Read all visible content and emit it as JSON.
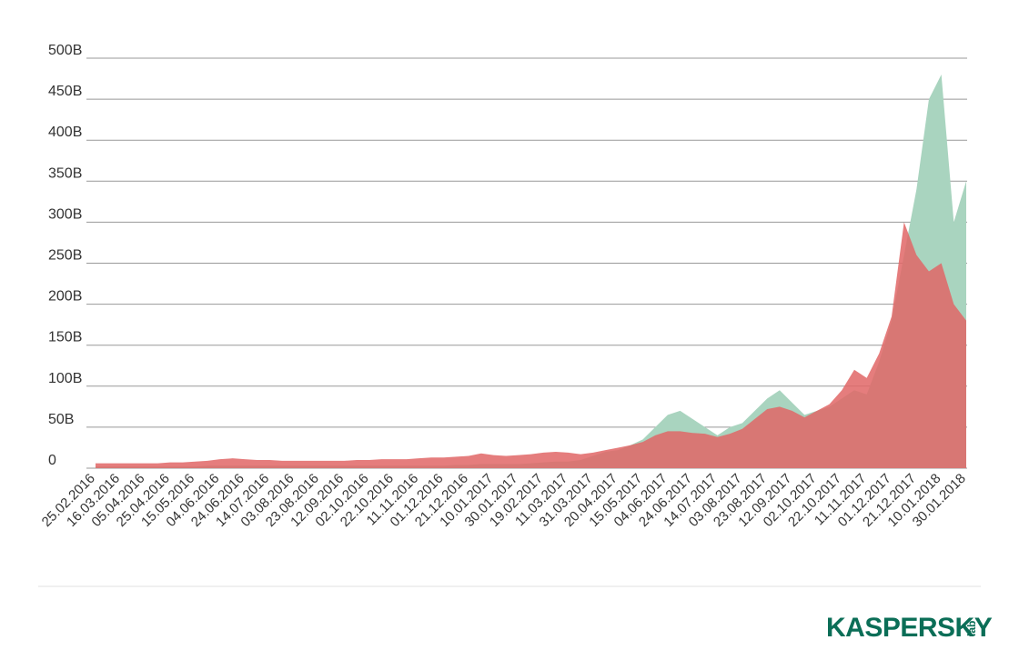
{
  "chart_data": {
    "type": "area",
    "categories": [
      "25.02.2016",
      null,
      "16.03.2016",
      null,
      "05.04.2016",
      null,
      "25.04.2016",
      null,
      "15.05.2016",
      null,
      "04.06.2016",
      null,
      "24.06.2016",
      null,
      "14.07.2016",
      null,
      "03.08.2016",
      null,
      "23.08.2016",
      null,
      "12.09.2016",
      null,
      "02.10.2016",
      null,
      "22.10.2016",
      null,
      "11.11.2016",
      null,
      "01.12.2016",
      null,
      "21.12.2016",
      null,
      "10.01.2017",
      null,
      "30.01.2017",
      null,
      "19.02.2017",
      null,
      "11.03.2017",
      null,
      "31.03.2017",
      null,
      "20.04.2017",
      null,
      "15.05.2017",
      null,
      "04.06.2017",
      null,
      "24.06.2017",
      null,
      "14.07.2017",
      null,
      "03.08.2017",
      null,
      "23.08.2017",
      null,
      "12.09.2017",
      null,
      "02.10.2017",
      null,
      "22.10.2017",
      null,
      "11.11.2017",
      null,
      "01.12.2017",
      null,
      "21.12.2017",
      null,
      "10.01.2018",
      null,
      "30.01.2018"
    ],
    "series": [
      {
        "color": "#a9d4bf",
        "values": [
          2,
          2,
          2,
          2,
          2,
          2,
          2,
          2,
          2,
          3,
          3,
          3,
          3,
          3,
          3,
          3,
          3,
          3,
          3,
          3,
          3,
          3,
          3,
          3,
          3,
          3,
          3,
          3,
          3,
          4,
          4,
          5,
          5,
          5,
          5,
          6,
          7,
          8,
          8,
          10,
          15,
          20,
          22,
          28,
          35,
          50,
          65,
          70,
          60,
          50,
          40,
          50,
          55,
          70,
          85,
          95,
          80,
          65,
          70,
          75,
          85,
          95,
          90,
          130,
          180,
          260,
          340,
          450,
          480,
          300,
          350
        ]
      },
      {
        "color": "#e06666",
        "values": [
          6,
          6,
          6,
          6,
          6,
          6,
          7,
          7,
          8,
          9,
          11,
          12,
          11,
          10,
          10,
          9,
          9,
          9,
          9,
          9,
          9,
          10,
          10,
          11,
          11,
          11,
          12,
          13,
          13,
          14,
          15,
          18,
          16,
          15,
          16,
          17,
          19,
          20,
          19,
          17,
          19,
          22,
          25,
          28,
          32,
          40,
          45,
          45,
          43,
          42,
          38,
          42,
          48,
          60,
          72,
          75,
          70,
          62,
          70,
          78,
          95,
          120,
          110,
          140,
          185,
          300,
          260,
          240,
          250,
          200,
          180
        ]
      }
    ],
    "ylim": [
      0,
      500
    ],
    "yticks": [
      0,
      {
        "value": 50,
        "label": "50B"
      },
      {
        "value": 100,
        "label": "100B"
      },
      {
        "value": 150,
        "label": "150B"
      },
      {
        "value": 200,
        "label": "200B"
      },
      {
        "value": 250,
        "label": "250B"
      },
      {
        "value": 300,
        "label": "300B"
      },
      {
        "value": 350,
        "label": "350B"
      },
      {
        "value": 400,
        "label": "400B"
      },
      {
        "value": 450,
        "label": "450B"
      },
      {
        "value": 500,
        "label": "500B"
      }
    ],
    "grid": true
  },
  "logo": {
    "text": "KASPERSKY",
    "sub": "lab"
  }
}
